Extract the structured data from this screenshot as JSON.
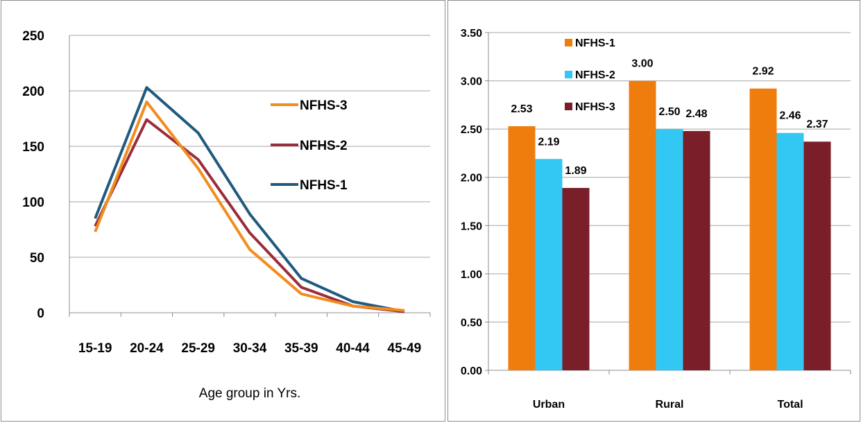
{
  "chart_data": [
    {
      "type": "line",
      "title": "",
      "xlabel": "Age group in Yrs.",
      "ylabel": "",
      "categories": [
        "15-19",
        "20-24",
        "25-29",
        "30-34",
        "35-39",
        "40-44",
        "45-49"
      ],
      "ylim": [
        0,
        250
      ],
      "yticks": [
        "0",
        "50",
        "100",
        "150",
        "200",
        "250"
      ],
      "grid": true,
      "legend_position": "right",
      "series": [
        {
          "name": "NFHS-3",
          "color": "#f28c1e",
          "values": [
            73,
            190,
            130,
            57,
            17,
            6,
            2
          ]
        },
        {
          "name": "NFHS-2",
          "color": "#9a2d3b",
          "values": [
            78,
            174,
            138,
            72,
            23,
            6,
            1
          ]
        },
        {
          "name": "NFHS-1",
          "color": "#1f5a7e",
          "values": [
            85,
            203,
            162,
            89,
            31,
            10,
            1
          ]
        }
      ]
    },
    {
      "type": "bar",
      "title": "",
      "xlabel": "",
      "ylabel": "",
      "categories": [
        "Urban",
        "Rural",
        "Total"
      ],
      "ylim": [
        0,
        3.5
      ],
      "yticks": [
        "0.00",
        "0.50",
        "1.00",
        "1.50",
        "2.00",
        "2.50",
        "3.00",
        "3.50"
      ],
      "grid": true,
      "legend_position": "top-left",
      "series": [
        {
          "name": "NFHS-1",
          "color": "#ef7d0e",
          "values": [
            2.53,
            3.0,
            2.92
          ],
          "labels": [
            "2.53",
            "3.00",
            "2.92"
          ]
        },
        {
          "name": "NFHS-2",
          "color": "#33c7f4",
          "values": [
            2.19,
            2.5,
            2.46
          ],
          "labels": [
            "2.19",
            "2.50",
            "2.46"
          ]
        },
        {
          "name": "NFHS-3",
          "color": "#7a1e2a",
          "values": [
            1.89,
            2.48,
            2.37
          ],
          "labels": [
            "1.89",
            "2.48",
            "2.37"
          ]
        }
      ]
    }
  ]
}
